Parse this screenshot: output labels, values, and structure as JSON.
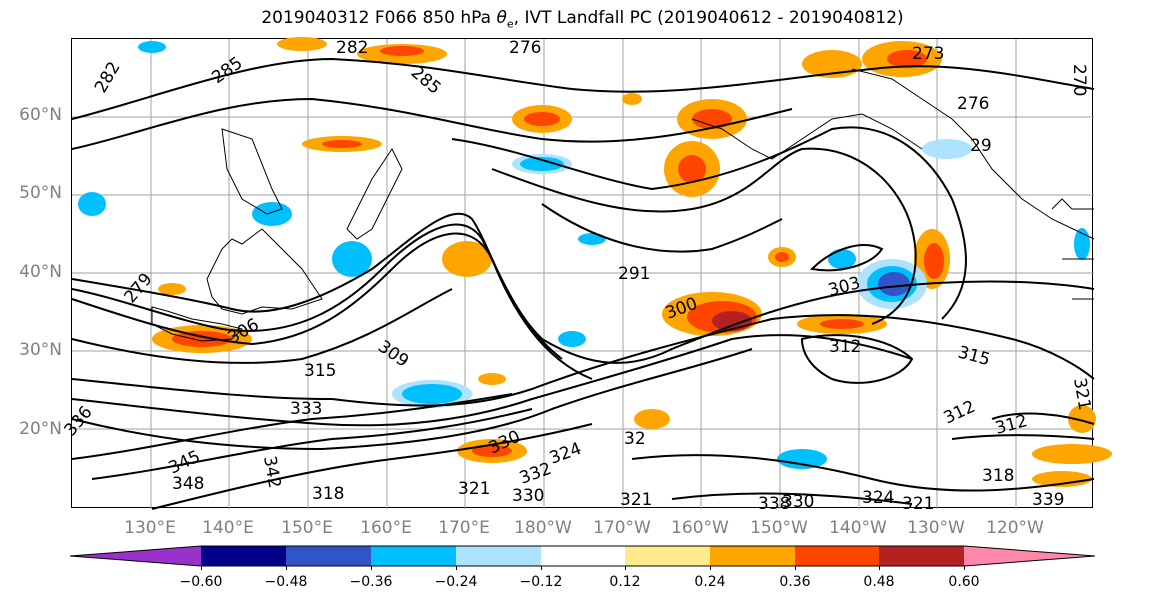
{
  "title": {
    "prefix": "2019040312 F066 850 hPa ",
    "theta": "θ",
    "sub": "e",
    "suffix": ", IVT Landfall PC (2019040612 - 2019040812)"
  },
  "lat_labels": [
    "60°N",
    "50°N",
    "40°N",
    "30°N",
    "20°N"
  ],
  "lon_labels": [
    "130°E",
    "140°E",
    "150°E",
    "160°E",
    "170°E",
    "180°W",
    "170°W",
    "160°W",
    "150°W",
    "140°W",
    "130°W",
    "120°W"
  ],
  "contour_labels": [
    "282",
    "276",
    "285",
    "282",
    "273",
    "276",
    "285",
    "291",
    "303",
    "300",
    "312",
    "315",
    "309",
    "306",
    "315",
    "333",
    "330",
    "312",
    "312",
    "336",
    "345",
    "348",
    "342",
    "318",
    "321",
    "330",
    "332",
    "324",
    "321",
    "338",
    "330",
    "324",
    "318",
    "339",
    "32",
    "29",
    "279",
    "270",
    "321",
    "321"
  ],
  "colorbar": {
    "colors": [
      "#9932cc",
      "#00008b",
      "#3155c8",
      "#00bfff",
      "#aee3ff",
      "#ffffff",
      "#ffeb8c",
      "#ffa500",
      "#ff4500",
      "#b22222",
      "#ff88aa"
    ],
    "ticks": [
      "−0.60",
      "−0.48",
      "−0.36",
      "−0.24",
      "−0.12",
      "0.12",
      "0.24",
      "0.36",
      "0.48",
      "0.60"
    ]
  },
  "colors": {
    "gridline": "#a0a0a0",
    "axis_label": "#808080",
    "contour": "#000000"
  }
}
